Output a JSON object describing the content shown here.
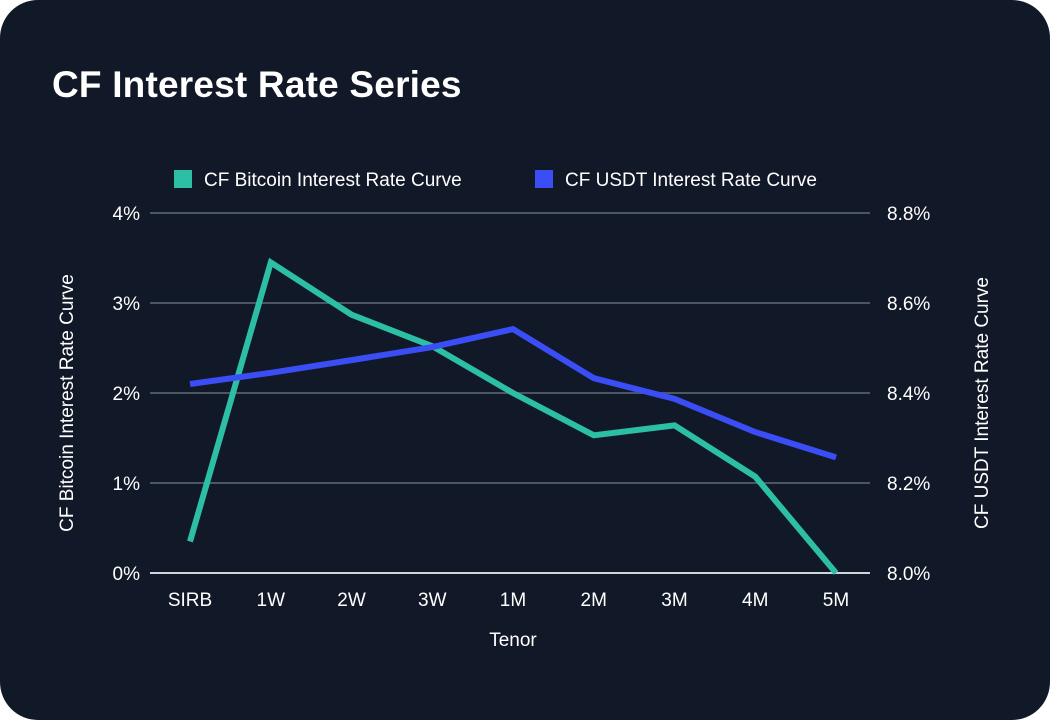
{
  "title": "CF Interest Rate Series",
  "chart_data": {
    "type": "line",
    "categories": [
      "SIRB",
      "1W",
      "2W",
      "3W",
      "1M",
      "2M",
      "3M",
      "4M",
      "5M"
    ],
    "xlabel": "Tenor",
    "y_left": {
      "label": "CF Bitcoin Interest Rate Curve",
      "ticks": [
        "0%",
        "1%",
        "2%",
        "3%",
        "4%"
      ],
      "range": [
        0,
        4
      ]
    },
    "y_right": {
      "label": "CF USDT Interest Rate Curve",
      "ticks": [
        "8.0%",
        "8.2%",
        "8.4%",
        "8.6%",
        "8.8%"
      ],
      "range": [
        8.0,
        8.8
      ]
    },
    "grid": true,
    "legend_position": "top-center",
    "series": [
      {
        "name": "CF Bitcoin Interest Rate Curve",
        "axis": "left",
        "color": "#2dbfa6",
        "values": [
          0.35,
          3.45,
          2.87,
          2.52,
          2.0,
          1.53,
          1.64,
          1.07,
          0.0
        ]
      },
      {
        "name": "CF USDT Interest Rate Curve",
        "axis": "right",
        "color": "#3b4ef5",
        "values": [
          8.42,
          8.445,
          8.473,
          8.502,
          8.542,
          8.433,
          8.387,
          8.313,
          8.257
        ]
      }
    ]
  }
}
